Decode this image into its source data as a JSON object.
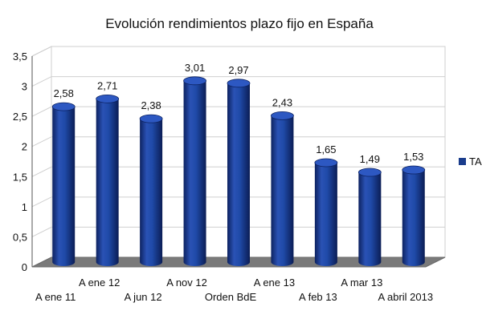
{
  "chart_data": {
    "type": "bar",
    "title": "Evolución rendimientos plazo fijo en España",
    "categories": [
      "A ene 11",
      "A ene 12",
      "A jun 12",
      "A nov 12",
      "Orden BdE",
      "A ene 13",
      "A feb 13",
      "A mar 13",
      "A abril 2013"
    ],
    "series": [
      {
        "name": "TA",
        "values": [
          2.58,
          2.71,
          2.38,
          3.01,
          2.97,
          2.43,
          1.65,
          1.49,
          1.53
        ],
        "labels": [
          "2,58",
          "2,71",
          "2,38",
          "3,01",
          "2,97",
          "2,43",
          "1,65",
          "1,49",
          "1,53"
        ],
        "color": "#1a3c8c"
      }
    ],
    "ylim": [
      0,
      3.5
    ],
    "yticks": [
      "0",
      "0,5",
      "1",
      "1,5",
      "2",
      "2,5",
      "3",
      "3,5"
    ],
    "grid": true,
    "legend_position": "right",
    "style": "3d-cylinder"
  }
}
